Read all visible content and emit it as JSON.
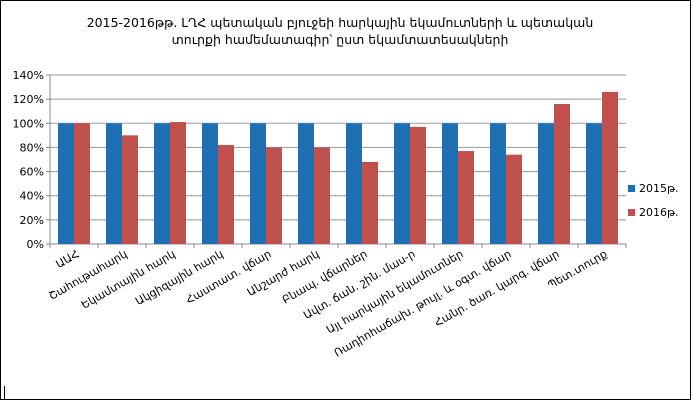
{
  "chart_data": {
    "type": "bar",
    "title_line1": "2015-2016թթ. ԼՂՀ պետական բյուջեի հարկային եկամուտների և պետական",
    "title_line2": "տուրքի  համեմատագիր՝ ըստ եկամտատեսակների",
    "categories": [
      "ԱԱՀ",
      "Շահութահարկ",
      "Եկամտային հարկ",
      "Ակցիզային հարկ",
      "Հաստատ. վճար",
      "Անշարժ հարկ",
      "Բնապ. վճարներ",
      "Ավտ. ճան. շին. մաս-ր",
      "Այլ հարկային եկամուտներ",
      "Ռադիոհաճախ. թույլ. և օգտ. վճար",
      "Հանր. ծառ. կարգ. վճար",
      "Պետ.տուրք"
    ],
    "series": [
      {
        "name": "2015թ.",
        "color": "#1f6fb5",
        "values": [
          100,
          100,
          100,
          100,
          100,
          100,
          100,
          100,
          100,
          100,
          100,
          100
        ]
      },
      {
        "name": "2016թ.",
        "color": "#c0504d",
        "values": [
          100,
          90,
          101,
          82,
          80,
          80,
          68,
          97,
          77,
          74,
          116,
          126
        ]
      }
    ],
    "ylim": [
      0,
      140
    ],
    "yticks": [
      "0%",
      "20%",
      "40%",
      "60%",
      "80%",
      "100%",
      "120%",
      "140%"
    ],
    "grid": true,
    "legend_position": "right"
  }
}
